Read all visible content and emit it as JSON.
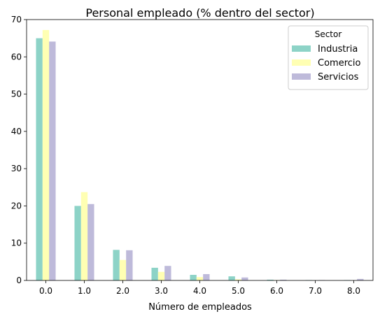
{
  "chart_data": {
    "type": "bar",
    "title": "Personal empleado (% dentro del sector)",
    "xlabel": "Número de empleados",
    "ylabel": "",
    "categories": [
      "0.0",
      "1.0",
      "2.0",
      "3.0",
      "4.0",
      "5.0",
      "6.0",
      "7.0",
      "8.0"
    ],
    "series": [
      {
        "name": "Industria",
        "color": "#8dd3c7",
        "values": [
          65.0,
          20.0,
          8.2,
          3.4,
          1.5,
          1.1,
          0.2,
          0.1,
          0.1
        ]
      },
      {
        "name": "Comercio",
        "color": "#ffffb3",
        "values": [
          67.2,
          23.7,
          5.5,
          2.3,
          0.9,
          0.3,
          0.1,
          0.0,
          0.0
        ]
      },
      {
        "name": "Servicios",
        "color": "#bebada",
        "values": [
          64.1,
          20.5,
          8.1,
          3.9,
          1.7,
          0.8,
          0.2,
          0.1,
          0.4
        ]
      }
    ],
    "ylim": [
      0,
      70
    ],
    "yticks": [
      "0",
      "10",
      "20",
      "30",
      "40",
      "50",
      "60",
      "70"
    ],
    "legend": {
      "title": "Sector",
      "placement": "top-right"
    },
    "grid": false
  }
}
